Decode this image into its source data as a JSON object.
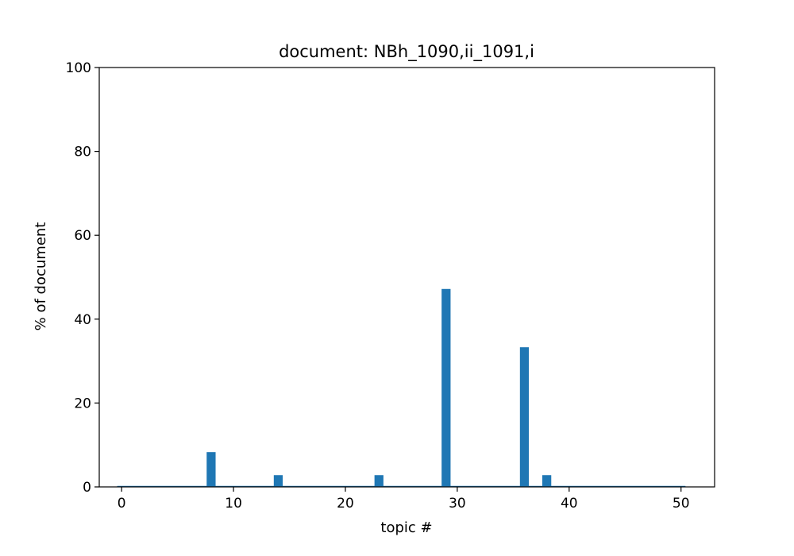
{
  "chart_data": {
    "type": "bar",
    "title": "document: NBh_1090,ii_1091,i",
    "xlabel": "topic #",
    "ylabel": "% of document",
    "xlim": [
      -2,
      53
    ],
    "ylim": [
      0,
      100
    ],
    "xticks": [
      0,
      10,
      20,
      30,
      40,
      50
    ],
    "yticks": [
      0,
      20,
      40,
      60,
      80,
      100
    ],
    "grid": false,
    "bar_color": "#1f77b4",
    "x": [
      8,
      14,
      23,
      29,
      36,
      38
    ],
    "values": [
      8.3,
      2.8,
      2.8,
      47.2,
      33.3,
      2.8
    ]
  }
}
